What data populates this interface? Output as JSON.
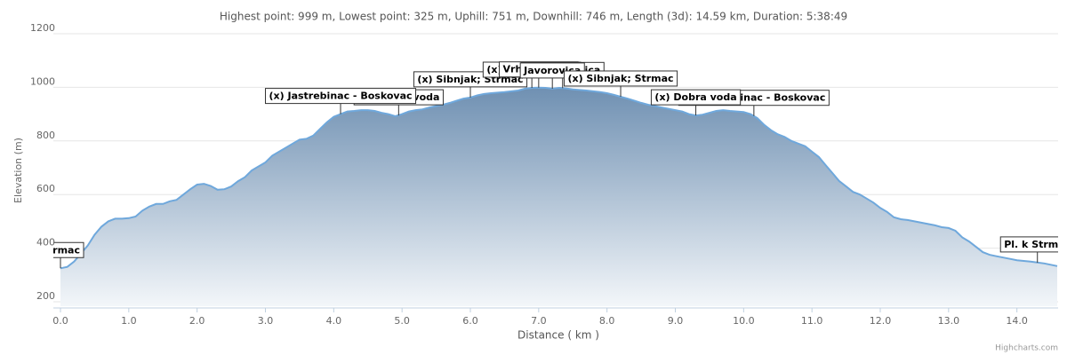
{
  "chart_data": {
    "type": "area",
    "title": "Highest point: 999 m, Lowest point: 325 m, Uphill: 751 m, Downhill: 746 m, Length (3d): 14.59 km, Duration: 5:38:49",
    "x_label": "Distance ( km )",
    "y_label": "Elevation (m)",
    "credit": "Highcharts.com",
    "grid": true,
    "xlim": [
      0,
      14.59
    ],
    "ylim": [
      200,
      1200
    ],
    "yticks": [
      200,
      400,
      600,
      800,
      1000,
      1200
    ],
    "xticks": [
      {
        "value": 0,
        "label": "0.0"
      },
      {
        "value": 1,
        "label": "1.0"
      },
      {
        "value": 2,
        "label": "2.0"
      },
      {
        "value": 3,
        "label": "3.0"
      },
      {
        "value": 4,
        "label": "4.0"
      },
      {
        "value": 5,
        "label": "5.0"
      },
      {
        "value": 6,
        "label": "6.0"
      },
      {
        "value": 7,
        "label": "7.0"
      },
      {
        "value": 8,
        "label": "8.0"
      },
      {
        "value": 9,
        "label": "9.0"
      },
      {
        "value": 10,
        "label": "10.0"
      },
      {
        "value": 11,
        "label": "11.0"
      },
      {
        "value": 12,
        "label": "12.0"
      },
      {
        "value": 13,
        "label": "13.0"
      },
      {
        "value": 14,
        "label": "14.0"
      }
    ],
    "x": [
      0,
      0.1,
      0.2,
      0.3,
      0.4,
      0.5,
      0.6,
      0.7,
      0.8,
      0.9,
      1.0,
      1.1,
      1.2,
      1.3,
      1.4,
      1.5,
      1.6,
      1.7,
      1.8,
      1.9,
      2.0,
      2.1,
      2.2,
      2.3,
      2.4,
      2.5,
      2.6,
      2.7,
      2.8,
      2.9,
      3.0,
      3.1,
      3.2,
      3.3,
      3.4,
      3.5,
      3.6,
      3.7,
      3.8,
      3.9,
      4.0,
      4.1,
      4.2,
      4.3,
      4.4,
      4.5,
      4.6,
      4.7,
      4.8,
      4.9,
      5.0,
      5.1,
      5.2,
      5.3,
      5.4,
      5.5,
      5.6,
      5.7,
      5.8,
      5.9,
      6.0,
      6.1,
      6.2,
      6.3,
      6.4,
      6.5,
      6.6,
      6.7,
      6.8,
      6.9,
      7.0,
      7.1,
      7.2,
      7.3,
      7.4,
      7.5,
      7.6,
      7.7,
      7.8,
      7.9,
      8.0,
      8.1,
      8.2,
      8.3,
      8.4,
      8.5,
      8.6,
      8.7,
      8.8,
      8.9,
      9.0,
      9.1,
      9.2,
      9.3,
      9.4,
      9.5,
      9.6,
      9.7,
      9.8,
      9.9,
      10.0,
      10.1,
      10.2,
      10.3,
      10.4,
      10.5,
      10.6,
      10.7,
      10.8,
      10.9,
      11.0,
      11.1,
      11.2,
      11.3,
      11.4,
      11.5,
      11.6,
      11.7,
      11.8,
      11.9,
      12.0,
      12.1,
      12.2,
      12.3,
      12.4,
      12.5,
      12.6,
      12.7,
      12.8,
      12.9,
      13.0,
      13.1,
      13.2,
      13.3,
      13.4,
      13.5,
      13.6,
      13.7,
      13.8,
      13.9,
      14.0,
      14.2,
      14.4,
      14.59
    ],
    "series": [
      {
        "name": "Elevation",
        "color": "#6fa8dc",
        "values": [
          325,
          330,
          350,
          380,
          410,
          450,
          480,
          500,
          510,
          510,
          512,
          518,
          540,
          555,
          565,
          565,
          575,
          580,
          600,
          620,
          637,
          640,
          632,
          618,
          620,
          630,
          650,
          665,
          690,
          705,
          720,
          745,
          760,
          775,
          790,
          805,
          808,
          820,
          845,
          870,
          890,
          900,
          910,
          912,
          915,
          915,
          912,
          905,
          900,
          892,
          900,
          910,
          915,
          918,
          925,
          930,
          935,
          942,
          950,
          958,
          962,
          970,
          975,
          978,
          980,
          982,
          985,
          988,
          995,
          998,
          999,
          998,
          995,
          998,
          996,
          992,
          990,
          988,
          985,
          982,
          978,
          972,
          965,
          958,
          950,
          942,
          935,
          930,
          925,
          920,
          915,
          910,
          900,
          895,
          898,
          905,
          912,
          915,
          912,
          910,
          908,
          900,
          885,
          860,
          840,
          825,
          815,
          800,
          790,
          780,
          760,
          740,
          710,
          680,
          650,
          630,
          610,
          600,
          585,
          570,
          550,
          535,
          515,
          508,
          505,
          500,
          495,
          490,
          485,
          478,
          475,
          465,
          440,
          425,
          405,
          385,
          375,
          370,
          365,
          360,
          355,
          350,
          343,
          333
        ]
      }
    ],
    "annotations": [
      {
        "text": "Strmac",
        "x": 0,
        "y": 325
      },
      {
        "text": "(x) Dobra voda",
        "x": 4.95,
        "y": 895
      },
      {
        "text": "(x) Jastrebinac - Boskovac",
        "x": 4.1,
        "y": 900
      },
      {
        "text": "(x) Sibnjak; Strmac",
        "x": 6.0,
        "y": 962
      },
      {
        "text": "(x) Vrh piramida",
        "x": 6.9,
        "y": 998
      },
      {
        "text": "Vrh piramida",
        "x": 7.0,
        "y": 999
      },
      {
        "text": "(x) Javorovica",
        "x": 7.35,
        "y": 997
      },
      {
        "text": "Javorovica",
        "x": 7.2,
        "y": 995
      },
      {
        "text": "(x) Sibnjak; Strmac",
        "x": 8.2,
        "y": 965
      },
      {
        "text": "(x) Jastrebinac - Boskovac",
        "x": 10.15,
        "y": 893
      },
      {
        "text": "(x) Dobra voda",
        "x": 9.3,
        "y": 895
      },
      {
        "text": "Pl. k Strmac",
        "x": 14.3,
        "y": 346
      }
    ]
  }
}
